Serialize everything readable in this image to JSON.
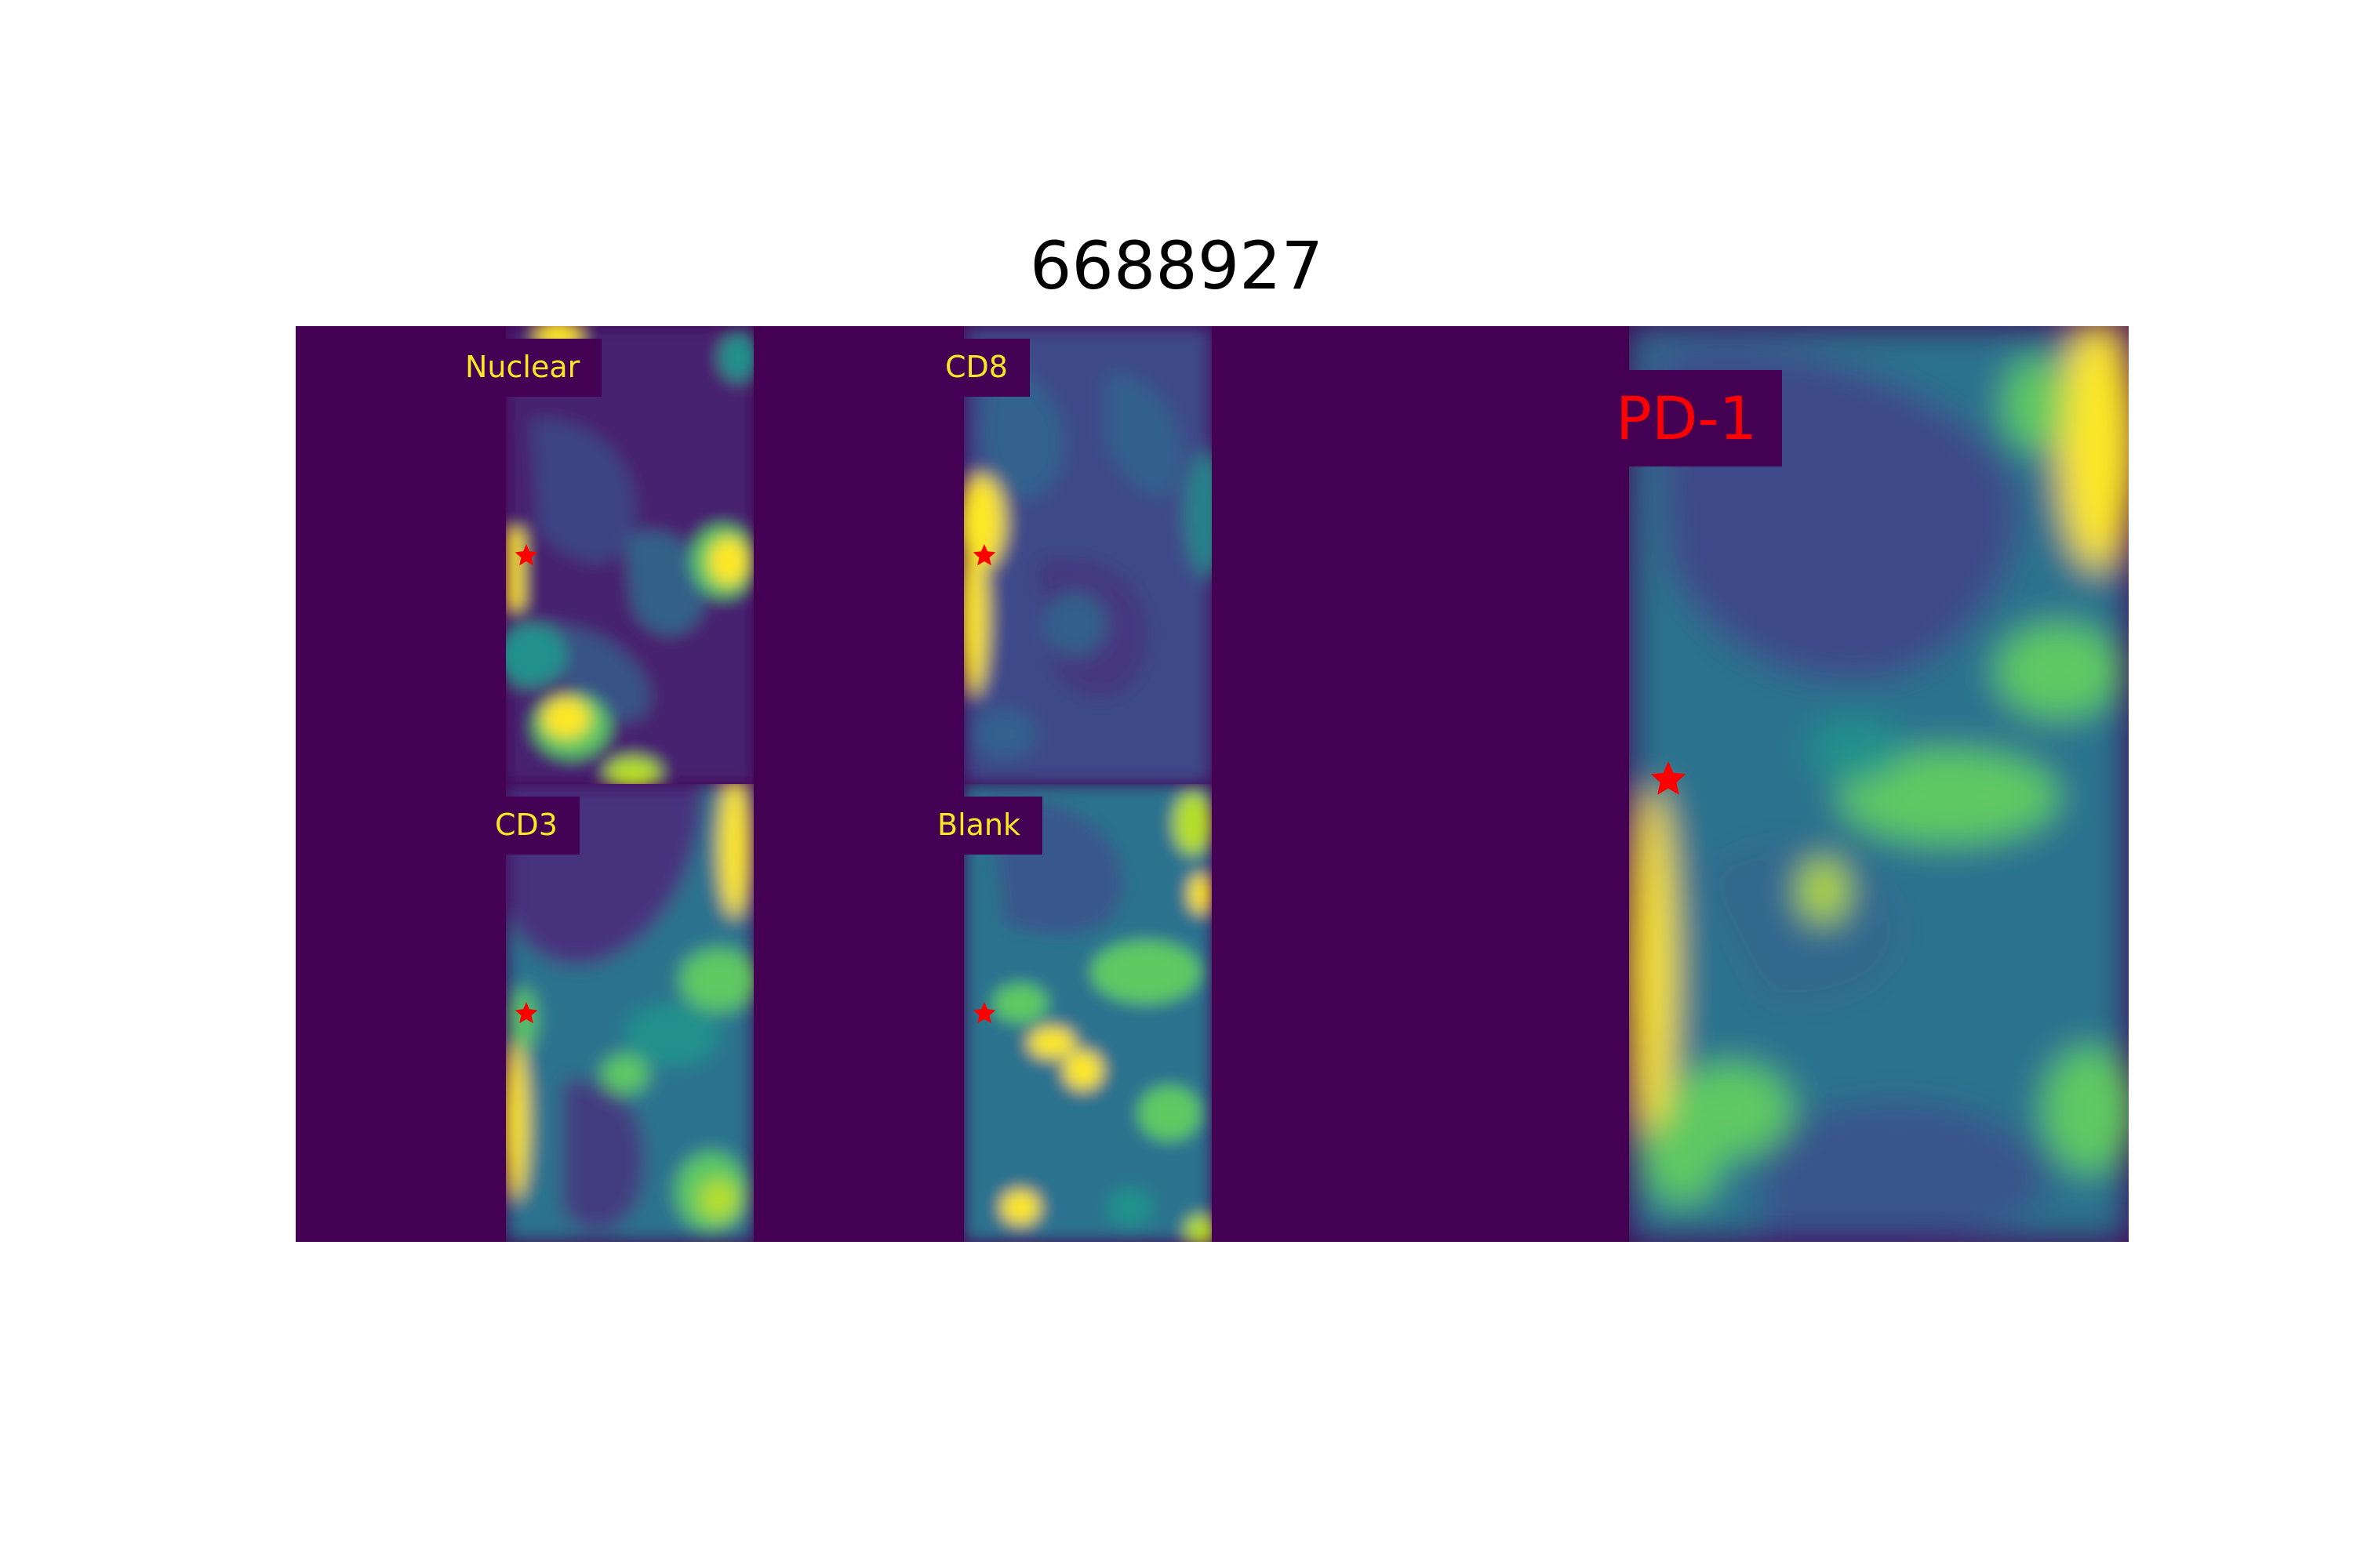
{
  "figure": {
    "title": "6688927"
  },
  "panels": [
    {
      "id": "nuclear",
      "label": "Nuclear"
    },
    {
      "id": "cd8",
      "label": "CD8"
    },
    {
      "id": "cd3",
      "label": "CD3"
    },
    {
      "id": "blank",
      "label": "Blank"
    },
    {
      "id": "pd1",
      "label": "PD-1"
    }
  ],
  "colors": {
    "background": "#440154",
    "low": "#3b528b",
    "mid": "#21918c",
    "high": "#5ec962",
    "peak": "#fde725",
    "marker": "#ff0000",
    "label_text": "#fde725",
    "main_label_text": "#ff0000"
  },
  "marker_icon": "red-star-icon",
  "colormap": "viridis"
}
